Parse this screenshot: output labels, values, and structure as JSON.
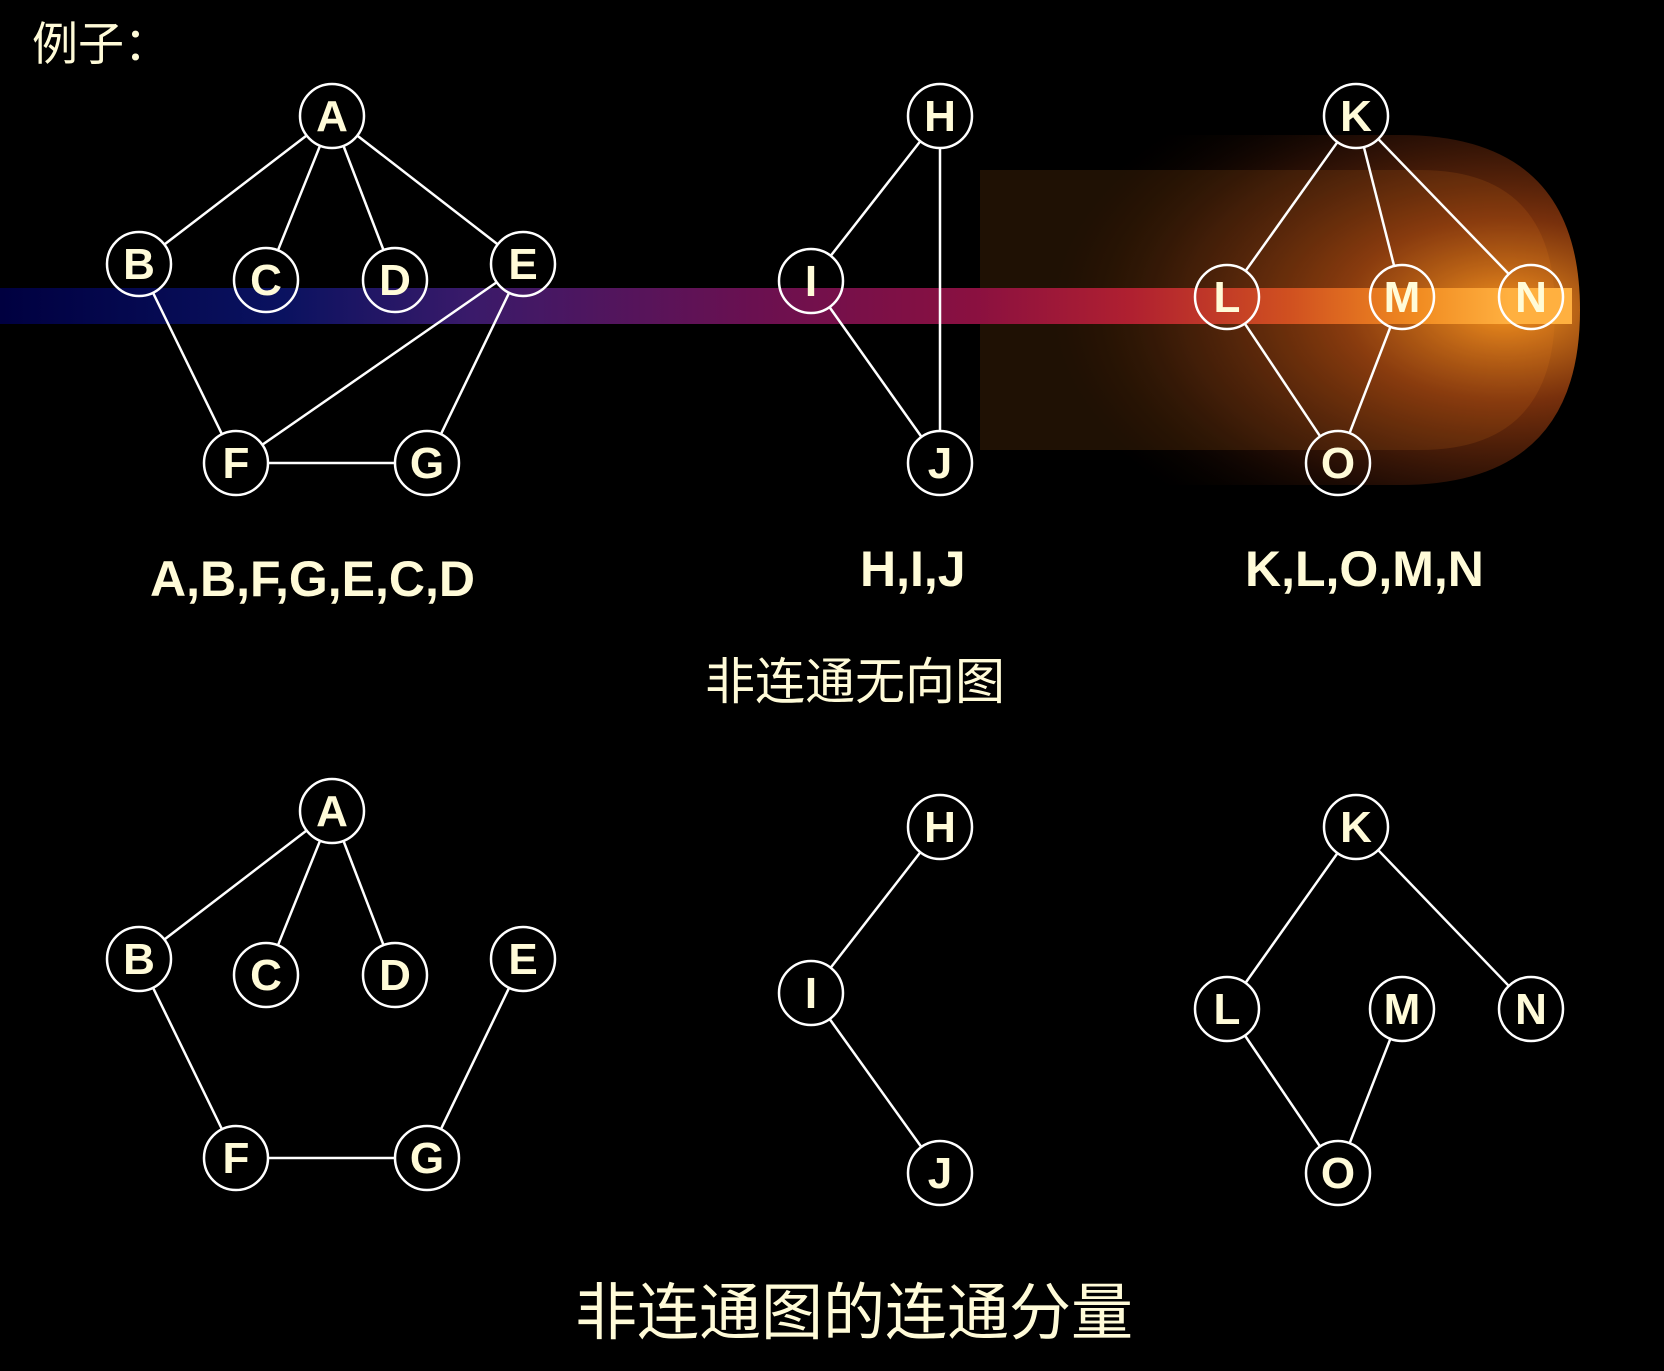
{
  "title": "例子：",
  "top": {
    "graphs": [
      {
        "nodes": [
          "A",
          "B",
          "C",
          "D",
          "E",
          "F",
          "G"
        ],
        "edges": [
          [
            "A",
            "B"
          ],
          [
            "A",
            "C"
          ],
          [
            "A",
            "D"
          ],
          [
            "A",
            "E"
          ],
          [
            "B",
            "F"
          ],
          [
            "E",
            "F"
          ],
          [
            "E",
            "G"
          ],
          [
            "F",
            "G"
          ]
        ],
        "traversal": "A,B,F,G,E,C,D"
      },
      {
        "nodes": [
          "H",
          "I",
          "J"
        ],
        "edges": [
          [
            "H",
            "I"
          ],
          [
            "H",
            "J"
          ],
          [
            "I",
            "J"
          ]
        ],
        "traversal": "H,I,J"
      },
      {
        "nodes": [
          "K",
          "L",
          "M",
          "N",
          "O"
        ],
        "edges": [
          [
            "K",
            "L"
          ],
          [
            "K",
            "M"
          ],
          [
            "K",
            "N"
          ],
          [
            "L",
            "O"
          ],
          [
            "M",
            "O"
          ]
        ],
        "traversal": "K,L,O,M,N"
      }
    ],
    "caption": "非连通无向图"
  },
  "bottom": {
    "graphs": [
      {
        "nodes": [
          "A",
          "B",
          "C",
          "D",
          "E",
          "F",
          "G"
        ],
        "edges": [
          [
            "A",
            "B"
          ],
          [
            "A",
            "C"
          ],
          [
            "A",
            "D"
          ],
          [
            "B",
            "F"
          ],
          [
            "F",
            "G"
          ],
          [
            "E",
            "G"
          ]
        ]
      },
      {
        "nodes": [
          "H",
          "I",
          "J"
        ],
        "edges": [
          [
            "H",
            "I"
          ],
          [
            "I",
            "J"
          ]
        ]
      },
      {
        "nodes": [
          "K",
          "L",
          "M",
          "N",
          "O"
        ],
        "edges": [
          [
            "K",
            "L"
          ],
          [
            "K",
            "N"
          ],
          [
            "L",
            "O"
          ],
          [
            "M",
            "O"
          ]
        ]
      }
    ],
    "caption": "非连通图的连通分量"
  },
  "colors": {
    "background": "#000000",
    "text": "#fffbd8",
    "line": "#ffffff"
  }
}
